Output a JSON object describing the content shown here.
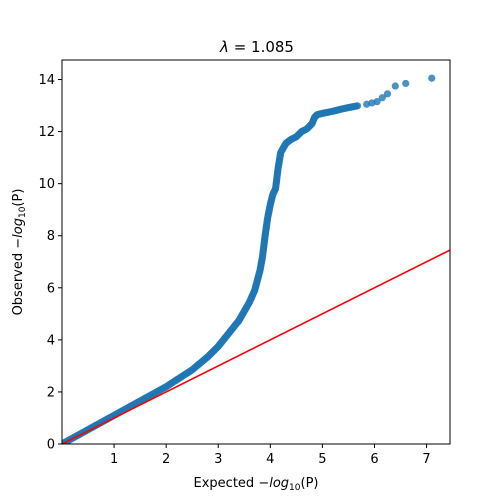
{
  "chart_data": {
    "type": "scatter",
    "title": "λ = 1.085",
    "title_parts": {
      "symbol": "λ",
      "rest": " = 1.085"
    },
    "xlabel_parts": {
      "prefix": "Expected ",
      "minus": "−",
      "log": "log",
      "sub": "10",
      "arg": "(P)"
    },
    "ylabel_parts": {
      "prefix": "Observed ",
      "minus": "−",
      "log": "log",
      "sub": "10",
      "arg": "(P)"
    },
    "xlim": [
      0,
      7.45
    ],
    "ylim": [
      0,
      14.75
    ],
    "x_ticks": [
      1,
      2,
      3,
      4,
      5,
      6,
      7
    ],
    "y_ticks": [
      0,
      2,
      4,
      6,
      8,
      10,
      12,
      14
    ],
    "grid": false,
    "legend": "none",
    "colors": {
      "points": "#1f77b4",
      "reference_line": "#ff0000"
    },
    "reference_line": {
      "x": [
        0,
        7.45
      ],
      "y": [
        0,
        7.45
      ]
    },
    "qq_curve": {
      "x": [
        0.0,
        0.5,
        1.0,
        1.5,
        2.0,
        2.5,
        2.8,
        3.0,
        3.2,
        3.4,
        3.6,
        3.7,
        3.8,
        3.85,
        3.9,
        3.95,
        4.0,
        4.05,
        4.1,
        4.15,
        4.2,
        4.3,
        4.4,
        4.5,
        4.6,
        4.7,
        4.8,
        4.85,
        4.9,
        5.0,
        5.2,
        5.4,
        5.5,
        5.7
      ],
      "y": [
        0.0,
        0.55,
        1.1,
        1.65,
        2.2,
        2.85,
        3.35,
        3.75,
        4.25,
        4.75,
        5.45,
        5.9,
        6.65,
        7.2,
        8.0,
        8.7,
        9.2,
        9.6,
        9.8,
        10.6,
        11.2,
        11.55,
        11.7,
        11.8,
        12.0,
        12.1,
        12.3,
        12.55,
        12.65,
        12.7,
        12.78,
        12.88,
        12.92,
        13.0
      ]
    },
    "extreme_points": {
      "x": [
        5.85,
        5.95,
        6.05,
        6.15,
        6.25,
        6.4,
        6.6,
        7.1
      ],
      "y": [
        13.05,
        13.1,
        13.15,
        13.3,
        13.45,
        13.75,
        13.85,
        14.05
      ]
    }
  }
}
